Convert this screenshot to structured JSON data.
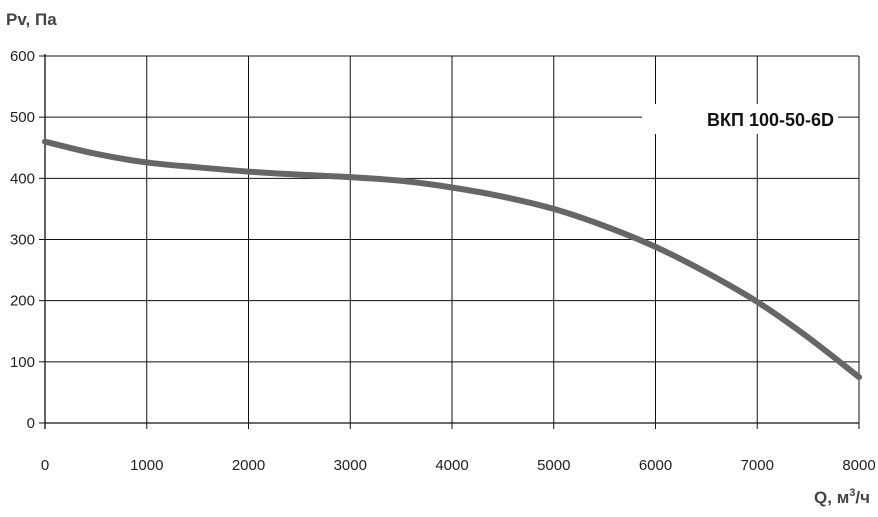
{
  "chart_data": {
    "type": "line",
    "ylabel": "Pv, Па",
    "xlabel_main": "Q, м",
    "xlabel_sup": "3",
    "xlabel_tail": "/ч",
    "series_label": "ВКП 100-50-6D",
    "xlim": [
      0,
      8000
    ],
    "ylim": [
      0,
      600
    ],
    "x_ticks": [
      0,
      1000,
      2000,
      3000,
      4000,
      5000,
      6000,
      7000,
      8000
    ],
    "y_ticks": [
      0,
      100,
      200,
      300,
      400,
      500,
      600
    ],
    "grid": true,
    "colors": {
      "line": "#666666",
      "grid": "#111111",
      "axis": "#111111"
    },
    "series": [
      {
        "x": [
          0,
          500,
          1000,
          1500,
          2000,
          2500,
          3000,
          3500,
          4000,
          4500,
          5000,
          5500,
          6000,
          6500,
          7000,
          7500,
          8000
        ],
        "y": [
          460,
          440,
          426,
          418,
          411,
          406,
          402,
          396,
          385,
          370,
          350,
          322,
          288,
          246,
          198,
          140,
          75
        ]
      }
    ]
  }
}
